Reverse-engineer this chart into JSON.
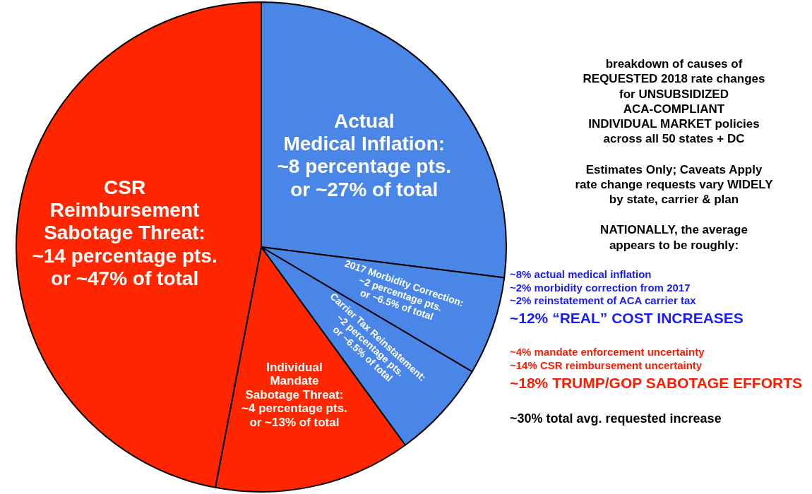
{
  "chart_data": {
    "type": "pie",
    "categories": [
      "Actual\nMedical Inflation:\n~8 percentage pts.\nor ~27% of total",
      "2017 Morbidity Correction:\n~2 percentage pts.\nor ~6.5% of total",
      "Carrier Tax Reinstatement:\n~2 percentage pts.\nor ~6.5% of total",
      "Individual\nMandate\nSabotage Threat:\n~4 percentage pts.\nor ~13% of total",
      "CSR\nReimbursement\nSabotage Threat:\n~14 percentage pts.\nor ~47% of total"
    ],
    "values": [
      27,
      6.5,
      6.5,
      13,
      47
    ],
    "colors": [
      "#4a86e8",
      "#4a86e8",
      "#4a86e8",
      "#ff2600",
      "#ff2600"
    ],
    "legend": false,
    "annotations": [
      "breakdown of causes of\nREQUESTED 2018 rate changes\nfor UNSUBSIDIZED\nACA-COMPLIANT\nINDIVIDUAL MARKET policies\nacross all 50 states + DC",
      "Estimates Only; Caveats Apply\nrate change requests vary WIDELY\nby state, carrier & plan",
      "NATIONALLY, the average\nappears to be roughly:",
      "~8% actual medical inflation\n~2% morbidity correction from 2017\n~2% reinstatement of ACA carrier tax",
      "~12% “REAL” COST INCREASES",
      "~4% mandate enforcement uncertainty\n~14% CSR reimbursement uncertainty",
      "~18% TRUMP/GOP SABOTAGE EFFORTS",
      "~30% total avg. requested increase"
    ]
  }
}
